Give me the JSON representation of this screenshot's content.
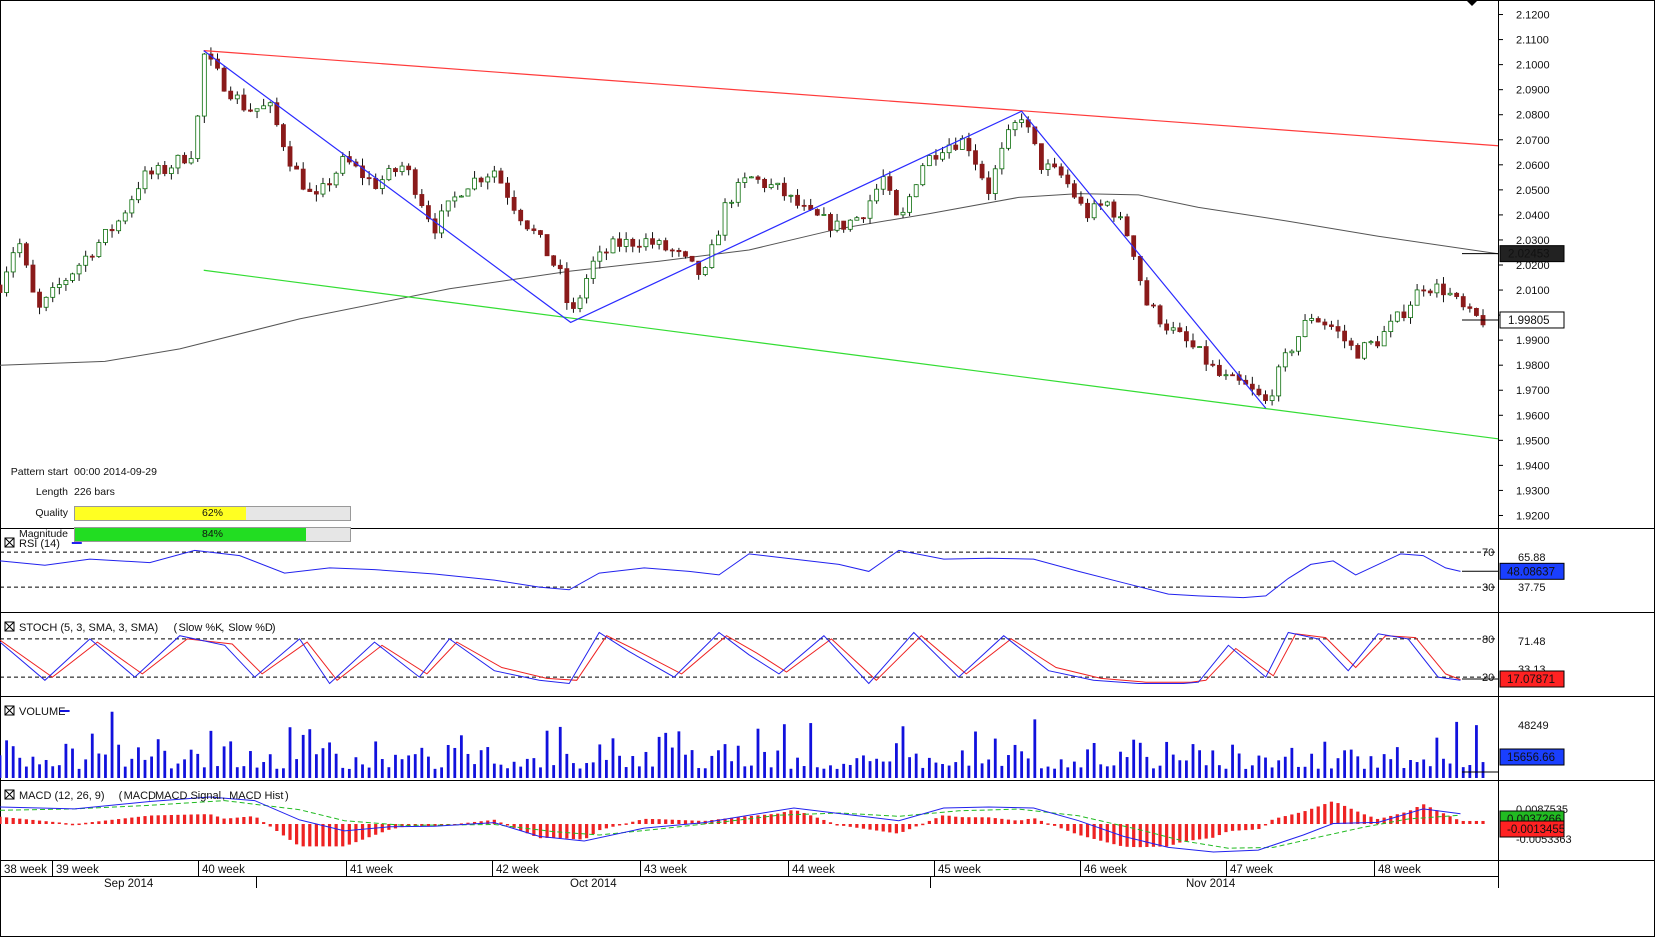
{
  "info": {
    "pattern_start_label": "Pattern start",
    "pattern_start_value": "00:00 2014-09-29",
    "length_label": "Length",
    "length_value": "226 bars",
    "quality_label": "Quality",
    "quality_value": 62,
    "quality_text": "62%",
    "magnitude_label": "Magnitude",
    "magnitude_value": 84,
    "magnitude_text": "84%"
  },
  "colors": {
    "resistance": "#ff3b3b",
    "support": "#33dd33",
    "zigzag": "#2b2bff",
    "ma": "#555555",
    "candle": "#0a6e0a",
    "candle_down": "#8a1a1a",
    "quality_fill": "#ffff22",
    "magnitude_fill": "#22dd22",
    "rsi": "#2222ee",
    "stoch_k": "#2222ee",
    "stoch_d": "#ee2222",
    "volume": "#1111dd",
    "macd": "#2222ee",
    "macd_signal": "#22bb22",
    "macd_hist": "#ee2222",
    "tag_dark": "#222222",
    "tag_red": "#ff2222"
  },
  "chart_data": [
    {
      "type": "candlestick",
      "y_ticks": [
        "2.1200",
        "2.1100",
        "2.1000",
        "2.0900",
        "2.0800",
        "2.0700",
        "2.0600",
        "2.0500",
        "2.0400",
        "2.0300",
        "2.0200",
        "2.0100",
        "2.0000",
        "1.9900",
        "1.9800",
        "1.9700",
        "1.9600",
        "1.9500",
        "1.9400",
        "1.9300",
        "1.9200"
      ],
      "ylim": [
        1.915,
        2.125
      ],
      "x_week_labels": [
        "38 week",
        "39 week",
        "40 week",
        "41 week",
        "42 week",
        "43 week",
        "44 week",
        "45 week",
        "46 week",
        "47 week",
        "48 week"
      ],
      "x_month_labels": [
        "Sep 2014",
        "Oct 2014",
        "Nov 2014"
      ],
      "current_price_tag": "1.99805",
      "current_price": 1.99805,
      "ma_value_tag": "2.02453",
      "ma_value": 2.02453,
      "zigzag": [
        {
          "x": 0.136,
          "y": 2.1056
        },
        {
          "x": 0.381,
          "y": 1.9971
        },
        {
          "x": 0.682,
          "y": 2.0814
        },
        {
          "x": 0.845,
          "y": 1.9628
        }
      ],
      "resistance_line": [
        {
          "x": 0.136,
          "y": 2.1056
        },
        {
          "x": 1.0,
          "y": 2.0676
        }
      ],
      "support_line": [
        {
          "x": 0.136,
          "y": 2.0179
        },
        {
          "x": 1.0,
          "y": 1.9506
        }
      ],
      "ma_series": [
        [
          0,
          1.98
        ],
        [
          0.07,
          1.9815
        ],
        [
          0.12,
          1.9865
        ],
        [
          0.2,
          1.9985
        ],
        [
          0.3,
          2.0105
        ],
        [
          0.38,
          2.0175
        ],
        [
          0.44,
          2.0215
        ],
        [
          0.5,
          2.026
        ],
        [
          0.56,
          2.0345
        ],
        [
          0.62,
          2.0405
        ],
        [
          0.68,
          2.047
        ],
        [
          0.72,
          2.0485
        ],
        [
          0.76,
          2.048
        ],
        [
          0.8,
          2.043
        ],
        [
          0.86,
          2.0375
        ],
        [
          0.92,
          2.0315
        ],
        [
          1.0,
          2.0245
        ]
      ],
      "close_series": [
        [
          0,
          2.012
        ],
        [
          0.012,
          2.031
        ],
        [
          0.025,
          2.001
        ],
        [
          0.04,
          2.012
        ],
        [
          0.06,
          2.025
        ],
        [
          0.08,
          2.038
        ],
        [
          0.095,
          2.055
        ],
        [
          0.11,
          2.058
        ],
        [
          0.13,
          2.066
        ],
        [
          0.136,
          2.104
        ],
        [
          0.15,
          2.092
        ],
        [
          0.165,
          2.082
        ],
        [
          0.18,
          2.083
        ],
        [
          0.195,
          2.06
        ],
        [
          0.21,
          2.045
        ],
        [
          0.23,
          2.062
        ],
        [
          0.25,
          2.052
        ],
        [
          0.27,
          2.06
        ],
        [
          0.29,
          2.035
        ],
        [
          0.31,
          2.052
        ],
        [
          0.33,
          2.058
        ],
        [
          0.345,
          2.042
        ],
        [
          0.36,
          2.03
        ],
        [
          0.375,
          2.015
        ],
        [
          0.381,
          1.998
        ],
        [
          0.395,
          2.02
        ],
        [
          0.41,
          2.028
        ],
        [
          0.43,
          2.03
        ],
        [
          0.45,
          2.025
        ],
        [
          0.47,
          2.015
        ],
        [
          0.485,
          2.045
        ],
        [
          0.5,
          2.055
        ],
        [
          0.52,
          2.05
        ],
        [
          0.54,
          2.04
        ],
        [
          0.56,
          2.035
        ],
        [
          0.575,
          2.04
        ],
        [
          0.59,
          2.055
        ],
        [
          0.6,
          2.035
        ],
        [
          0.615,
          2.06
        ],
        [
          0.63,
          2.068
        ],
        [
          0.645,
          2.07
        ],
        [
          0.66,
          2.05
        ],
        [
          0.672,
          2.07
        ],
        [
          0.682,
          2.08
        ],
        [
          0.695,
          2.06
        ],
        [
          0.71,
          2.055
        ],
        [
          0.725,
          2.04
        ],
        [
          0.74,
          2.045
        ],
        [
          0.755,
          2.03
        ],
        [
          0.765,
          2.005
        ],
        [
          0.78,
          1.995
        ],
        [
          0.8,
          1.985
        ],
        [
          0.815,
          1.975
        ],
        [
          0.83,
          1.972
        ],
        [
          0.845,
          1.965
        ],
        [
          0.86,
          1.985
        ],
        [
          0.875,
          2.0
        ],
        [
          0.89,
          1.995
        ],
        [
          0.905,
          1.985
        ],
        [
          0.92,
          1.99
        ],
        [
          0.935,
          2.0
        ],
        [
          0.95,
          2.012
        ],
        [
          0.965,
          2.01
        ],
        [
          0.98,
          2.0
        ],
        [
          0.99,
          1.998
        ]
      ]
    },
    {
      "type": "line",
      "name": "RSI",
      "label": "RSI (14)",
      "levels": [
        "70",
        "30"
      ],
      "tick_labels": [
        "65.88",
        "37.75"
      ],
      "ylim": [
        5,
        85
      ],
      "current_tag": "48.08637",
      "values": [
        [
          0,
          60
        ],
        [
          0.03,
          55
        ],
        [
          0.06,
          62
        ],
        [
          0.1,
          58
        ],
        [
          0.13,
          72
        ],
        [
          0.16,
          66
        ],
        [
          0.19,
          46
        ],
        [
          0.22,
          52
        ],
        [
          0.25,
          50
        ],
        [
          0.29,
          45
        ],
        [
          0.33,
          38
        ],
        [
          0.36,
          30
        ],
        [
          0.38,
          27
        ],
        [
          0.4,
          46
        ],
        [
          0.43,
          52
        ],
        [
          0.46,
          48
        ],
        [
          0.48,
          44
        ],
        [
          0.5,
          68
        ],
        [
          0.53,
          62
        ],
        [
          0.56,
          56
        ],
        [
          0.58,
          48
        ],
        [
          0.6,
          72
        ],
        [
          0.63,
          62
        ],
        [
          0.66,
          63
        ],
        [
          0.69,
          62
        ],
        [
          0.72,
          48
        ],
        [
          0.75,
          35
        ],
        [
          0.78,
          22
        ],
        [
          0.8,
          20
        ],
        [
          0.83,
          18
        ],
        [
          0.845,
          20
        ],
        [
          0.86,
          40
        ],
        [
          0.875,
          56
        ],
        [
          0.89,
          60
        ],
        [
          0.905,
          44
        ],
        [
          0.92,
          56
        ],
        [
          0.935,
          68
        ],
        [
          0.95,
          66
        ],
        [
          0.965,
          52
        ],
        [
          0.975,
          48
        ]
      ]
    },
    {
      "type": "line",
      "name": "STOCH",
      "label": "STOCH (5, 3, SMA, 3, SMA)",
      "legend": [
        "Slow %K",
        "Slow %D"
      ],
      "levels": [
        "80",
        "20"
      ],
      "tick_labels": [
        "71.48",
        "33.13"
      ],
      "ylim": [
        -5,
        105
      ],
      "current_tag": "17.07871",
      "k_values": [
        [
          0,
          75
        ],
        [
          0.03,
          15
        ],
        [
          0.06,
          80
        ],
        [
          0.09,
          20
        ],
        [
          0.12,
          85
        ],
        [
          0.15,
          70
        ],
        [
          0.17,
          20
        ],
        [
          0.2,
          80
        ],
        [
          0.22,
          10
        ],
        [
          0.25,
          75
        ],
        [
          0.28,
          20
        ],
        [
          0.3,
          80
        ],
        [
          0.33,
          30
        ],
        [
          0.36,
          15
        ],
        [
          0.38,
          10
        ],
        [
          0.4,
          90
        ],
        [
          0.42,
          60
        ],
        [
          0.45,
          20
        ],
        [
          0.48,
          90
        ],
        [
          0.5,
          55
        ],
        [
          0.52,
          25
        ],
        [
          0.55,
          85
        ],
        [
          0.58,
          10
        ],
        [
          0.61,
          90
        ],
        [
          0.64,
          20
        ],
        [
          0.67,
          85
        ],
        [
          0.7,
          30
        ],
        [
          0.73,
          15
        ],
        [
          0.76,
          10
        ],
        [
          0.79,
          10
        ],
        [
          0.8,
          12
        ],
        [
          0.82,
          70
        ],
        [
          0.845,
          20
        ],
        [
          0.86,
          90
        ],
        [
          0.88,
          80
        ],
        [
          0.9,
          30
        ],
        [
          0.92,
          88
        ],
        [
          0.94,
          80
        ],
        [
          0.96,
          20
        ],
        [
          0.975,
          15
        ]
      ],
      "d_values": [
        [
          0,
          78
        ],
        [
          0.035,
          20
        ],
        [
          0.065,
          75
        ],
        [
          0.095,
          25
        ],
        [
          0.125,
          80
        ],
        [
          0.155,
          72
        ],
        [
          0.175,
          25
        ],
        [
          0.205,
          75
        ],
        [
          0.225,
          15
        ],
        [
          0.255,
          70
        ],
        [
          0.285,
          25
        ],
        [
          0.305,
          75
        ],
        [
          0.335,
          35
        ],
        [
          0.365,
          18
        ],
        [
          0.385,
          15
        ],
        [
          0.405,
          85
        ],
        [
          0.425,
          62
        ],
        [
          0.455,
          25
        ],
        [
          0.485,
          85
        ],
        [
          0.505,
          58
        ],
        [
          0.525,
          28
        ],
        [
          0.555,
          80
        ],
        [
          0.585,
          15
        ],
        [
          0.615,
          85
        ],
        [
          0.645,
          25
        ],
        [
          0.675,
          80
        ],
        [
          0.705,
          35
        ],
        [
          0.735,
          18
        ],
        [
          0.765,
          12
        ],
        [
          0.795,
          12
        ],
        [
          0.805,
          15
        ],
        [
          0.825,
          65
        ],
        [
          0.85,
          22
        ],
        [
          0.865,
          88
        ],
        [
          0.885,
          82
        ],
        [
          0.905,
          35
        ],
        [
          0.925,
          85
        ],
        [
          0.945,
          82
        ],
        [
          0.965,
          25
        ],
        [
          0.975,
          16
        ]
      ]
    },
    {
      "type": "bar",
      "name": "VOLUME",
      "label": "VOLUME",
      "tick_labels": [
        "48249"
      ],
      "current_tag": "15656.66",
      "ylim": [
        0,
        60000
      ],
      "note_max_value": 57000
    },
    {
      "type": "line",
      "name": "MACD",
      "label": "MACD (12, 26, 9)",
      "legend": [
        "MACD",
        "MACD Signal",
        "MACD Hist"
      ],
      "tick_labels": [
        "0.0087535",
        "-0.0053363"
      ],
      "current_tags": [
        "0.0037266",
        "-0.0013455"
      ],
      "ylim": [
        -0.012,
        0.012
      ],
      "macd_values": [
        [
          0,
          0.0062
        ],
        [
          0.05,
          0.0055
        ],
        [
          0.1,
          0.0082
        ],
        [
          0.14,
          0.0098
        ],
        [
          0.17,
          0.0085
        ],
        [
          0.2,
          0.0015
        ],
        [
          0.23,
          -0.0025
        ],
        [
          0.26,
          -0.001
        ],
        [
          0.29,
          -0.0008
        ],
        [
          0.33,
          0.0005
        ],
        [
          0.36,
          -0.0045
        ],
        [
          0.39,
          -0.0062
        ],
        [
          0.43,
          -0.0015
        ],
        [
          0.47,
          0.0005
        ],
        [
          0.5,
          0.0032
        ],
        [
          0.53,
          0.0058
        ],
        [
          0.56,
          0.0038
        ],
        [
          0.6,
          0.0012
        ],
        [
          0.63,
          0.0058
        ],
        [
          0.66,
          0.0062
        ],
        [
          0.69,
          0.0058
        ],
        [
          0.72,
          0.0012
        ],
        [
          0.75,
          -0.0045
        ],
        [
          0.78,
          -0.0085
        ],
        [
          0.81,
          -0.0102
        ],
        [
          0.84,
          -0.0095
        ],
        [
          0.87,
          -0.004
        ],
        [
          0.89,
          0.0002
        ],
        [
          0.92,
          0.0006
        ],
        [
          0.95,
          0.0055
        ],
        [
          0.975,
          0.0037
        ]
      ],
      "signal_values": [
        [
          0,
          0.005
        ],
        [
          0.05,
          0.0055
        ],
        [
          0.1,
          0.0068
        ],
        [
          0.15,
          0.0085
        ],
        [
          0.2,
          0.0052
        ],
        [
          0.23,
          0.0012
        ],
        [
          0.27,
          -0.0005
        ],
        [
          0.33,
          -0.0002
        ],
        [
          0.37,
          -0.0028
        ],
        [
          0.4,
          -0.004
        ],
        [
          0.44,
          -0.0018
        ],
        [
          0.48,
          0.0006
        ],
        [
          0.52,
          0.0032
        ],
        [
          0.56,
          0.004
        ],
        [
          0.6,
          0.0028
        ],
        [
          0.64,
          0.0048
        ],
        [
          0.68,
          0.0054
        ],
        [
          0.72,
          0.003
        ],
        [
          0.76,
          -0.002
        ],
        [
          0.79,
          -0.0062
        ],
        [
          0.82,
          -0.0088
        ],
        [
          0.85,
          -0.0085
        ],
        [
          0.88,
          -0.0048
        ],
        [
          0.91,
          -0.0012
        ],
        [
          0.94,
          0.0018
        ],
        [
          0.975,
          0.0032
        ]
      ]
    }
  ]
}
